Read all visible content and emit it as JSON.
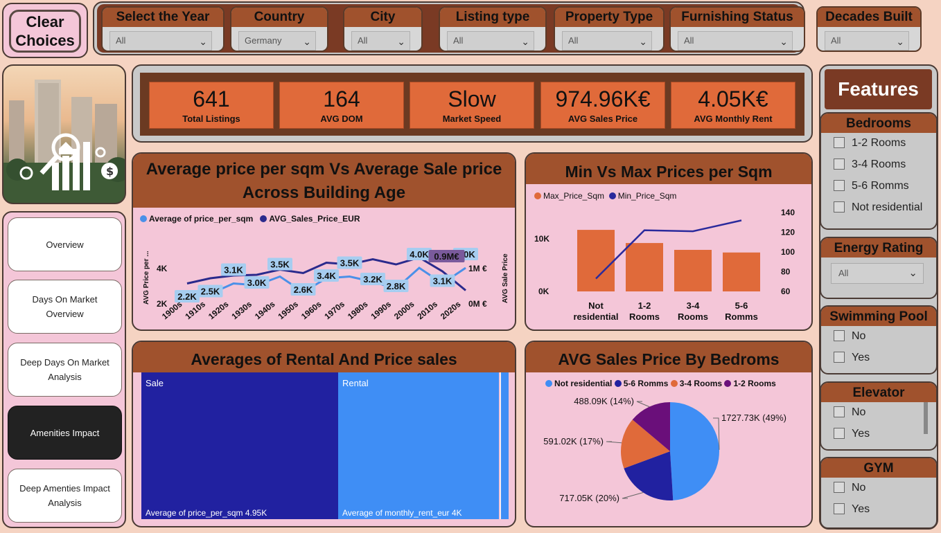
{
  "clear_choices": "Clear Choices",
  "filters": [
    {
      "label": "Select the Year",
      "value": "All"
    },
    {
      "label": "Country",
      "value": "Germany"
    },
    {
      "label": "City",
      "value": "All"
    },
    {
      "label": "Listing type",
      "value": "All"
    },
    {
      "label": "Property Type",
      "value": "All"
    },
    {
      "label": "Furnishing Status",
      "value": "All"
    },
    {
      "label": "Decades Built",
      "value": "All"
    }
  ],
  "nav": [
    {
      "label": "Overview",
      "active": false
    },
    {
      "label": "Days On Market Overview",
      "active": false
    },
    {
      "label": "Deep Days On Market Analysis",
      "active": false
    },
    {
      "label": "Amenities Impact",
      "active": true
    },
    {
      "label": "Deep Amenties Impact Analysis",
      "active": false
    }
  ],
  "kpis": [
    {
      "value": "641",
      "label": "Total Listings"
    },
    {
      "value": "164",
      "label": "AVG DOM"
    },
    {
      "value": "Slow",
      "label": "Market Speed"
    },
    {
      "value": "974.96K€",
      "label": "AVG Sales Price"
    },
    {
      "value": "4.05K€",
      "label": "AVG Monthly Rent"
    }
  ],
  "features": {
    "title": "Features",
    "bedrooms": {
      "title": "Bedrooms",
      "options": [
        "1-2 Rooms",
        "3-4 Rooms",
        "5-6 Romms",
        "Not residential"
      ]
    },
    "energy": {
      "title": "Energy Rating",
      "value": "All"
    },
    "pool": {
      "title": "Swimming Pool",
      "options": [
        "No",
        "Yes"
      ]
    },
    "elevator": {
      "title": "Elevator",
      "options": [
        "No",
        "Yes"
      ]
    },
    "gym": {
      "title": "GYM",
      "options": [
        "No",
        "Yes"
      ]
    }
  },
  "chart_data": [
    {
      "type": "line",
      "title": "Average price per sqm Vs Average Sale price Across Building Age",
      "ylabel": "AVG Price per ...",
      "y2label": "AVG Sale Price",
      "categories": [
        "1900s",
        "1910s",
        "1920s",
        "1930s",
        "1940s",
        "1950s",
        "1960s",
        "1970s",
        "1980s",
        "1990s",
        "2000s",
        "2010s",
        "2020s"
      ],
      "y_ticks": [
        "2K",
        "4K"
      ],
      "y2_ticks": [
        "0M €",
        "1M €"
      ],
      "series": [
        {
          "name": "Average of price_per_sqm",
          "color": "#4a90e8",
          "values": [
            2200,
            2500,
            3100,
            3000,
            3500,
            2600,
            3400,
            3500,
            3200,
            2800,
            4000,
            3100,
            4000
          ],
          "labels": [
            "2.2K",
            "2.5K",
            "3.1K",
            "3.0K",
            "3.5K",
            "2.6K",
            "3.4K",
            "3.5K",
            "3.2K",
            "2.8K",
            "4.0K",
            "3.1K",
            "4.0K"
          ]
        },
        {
          "name": "AVG_Sales_Price_EUR",
          "color": "#2a2a8c",
          "values": [
            0.55,
            0.7,
            0.78,
            0.8,
            0.95,
            0.85,
            1.15,
            1.1,
            1.25,
            1.1,
            1.3,
            0.9,
            0.35
          ],
          "labels": [
            "0.9M€"
          ]
        }
      ]
    },
    {
      "type": "bar",
      "title": "Min Vs Max Prices per Sqm",
      "categories": [
        "Not residential",
        "1-2 Rooms",
        "3-4 Rooms",
        "5-6 Romms"
      ],
      "y_ticks": [
        "0K",
        "10K"
      ],
      "y2_ticks": [
        "60",
        "80",
        "100",
        "120",
        "140"
      ],
      "series": [
        {
          "name": "Max_Price_Sqm",
          "color": "#e06a3a",
          "values": [
            11700,
            9200,
            7900,
            7400
          ]
        },
        {
          "name": "Min_Price_Sqm",
          "color": "#2a2a9c",
          "values": [
            73,
            122,
            121,
            132
          ]
        }
      ]
    },
    {
      "type": "treemap",
      "title": "Averages of Rental And Price sales",
      "items": [
        {
          "name": "Sale",
          "detail": "Average of price_per_sqm 4.95K",
          "color": "#2121a0"
        },
        {
          "name": "Rental",
          "detail": "Average of monthly_rent_eur 4K",
          "color": "#3f8ef5"
        }
      ]
    },
    {
      "type": "pie",
      "title": "AVG Sales Price By Bedroms",
      "series": [
        {
          "name": "Not residential",
          "value": 1727.73,
          "label": "1727.73K (49%)",
          "color": "#3f8ef5"
        },
        {
          "name": "5-6 Romms",
          "value": 717.05,
          "label": "717.05K (20%)",
          "color": "#2121a0"
        },
        {
          "name": "3-4 Rooms",
          "value": 591.02,
          "label": "591.02K (17%)",
          "color": "#e06a3a"
        },
        {
          "name": "1-2 Rooms",
          "value": 488.09,
          "label": "488.09K (14%)",
          "color": "#6a0f7a"
        }
      ]
    }
  ]
}
